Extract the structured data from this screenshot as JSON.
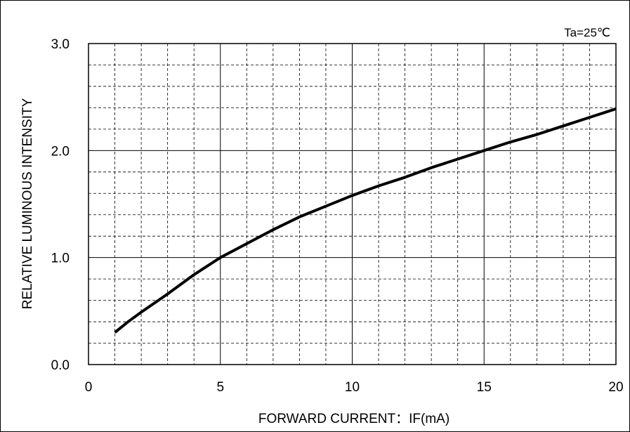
{
  "chart_data": {
    "type": "line",
    "title": "",
    "xlabel": "FORWARD CURRENT：IF(mA)",
    "ylabel": "RELATIVE LUMINOUS INTENSITY",
    "annotation": "Ta=25℃",
    "xlim": [
      0,
      20
    ],
    "ylim": [
      0.0,
      3.0
    ],
    "x_ticks": [
      0,
      5,
      10,
      15,
      20
    ],
    "x_tick_labels": [
      "0",
      "5",
      "10",
      "15",
      "20"
    ],
    "y_ticks": [
      0.0,
      1.0,
      2.0,
      3.0
    ],
    "y_tick_labels": [
      "0.0",
      "1.0",
      "2.0",
      "3.0"
    ],
    "x_minor_step": 1,
    "y_minor_step": 0.2,
    "grid": true,
    "series": [
      {
        "color": "#000000",
        "x": [
          1,
          1.5,
          2,
          3,
          4,
          5,
          6,
          7,
          8,
          9,
          10,
          11,
          12,
          13,
          14,
          15,
          16,
          17,
          18,
          19,
          20
        ],
        "y": [
          0.3,
          0.4,
          0.49,
          0.66,
          0.84,
          1.0,
          1.13,
          1.26,
          1.38,
          1.48,
          1.58,
          1.67,
          1.75,
          1.84,
          1.92,
          2.0,
          2.08,
          2.15,
          2.23,
          2.31,
          2.39
        ]
      }
    ]
  }
}
